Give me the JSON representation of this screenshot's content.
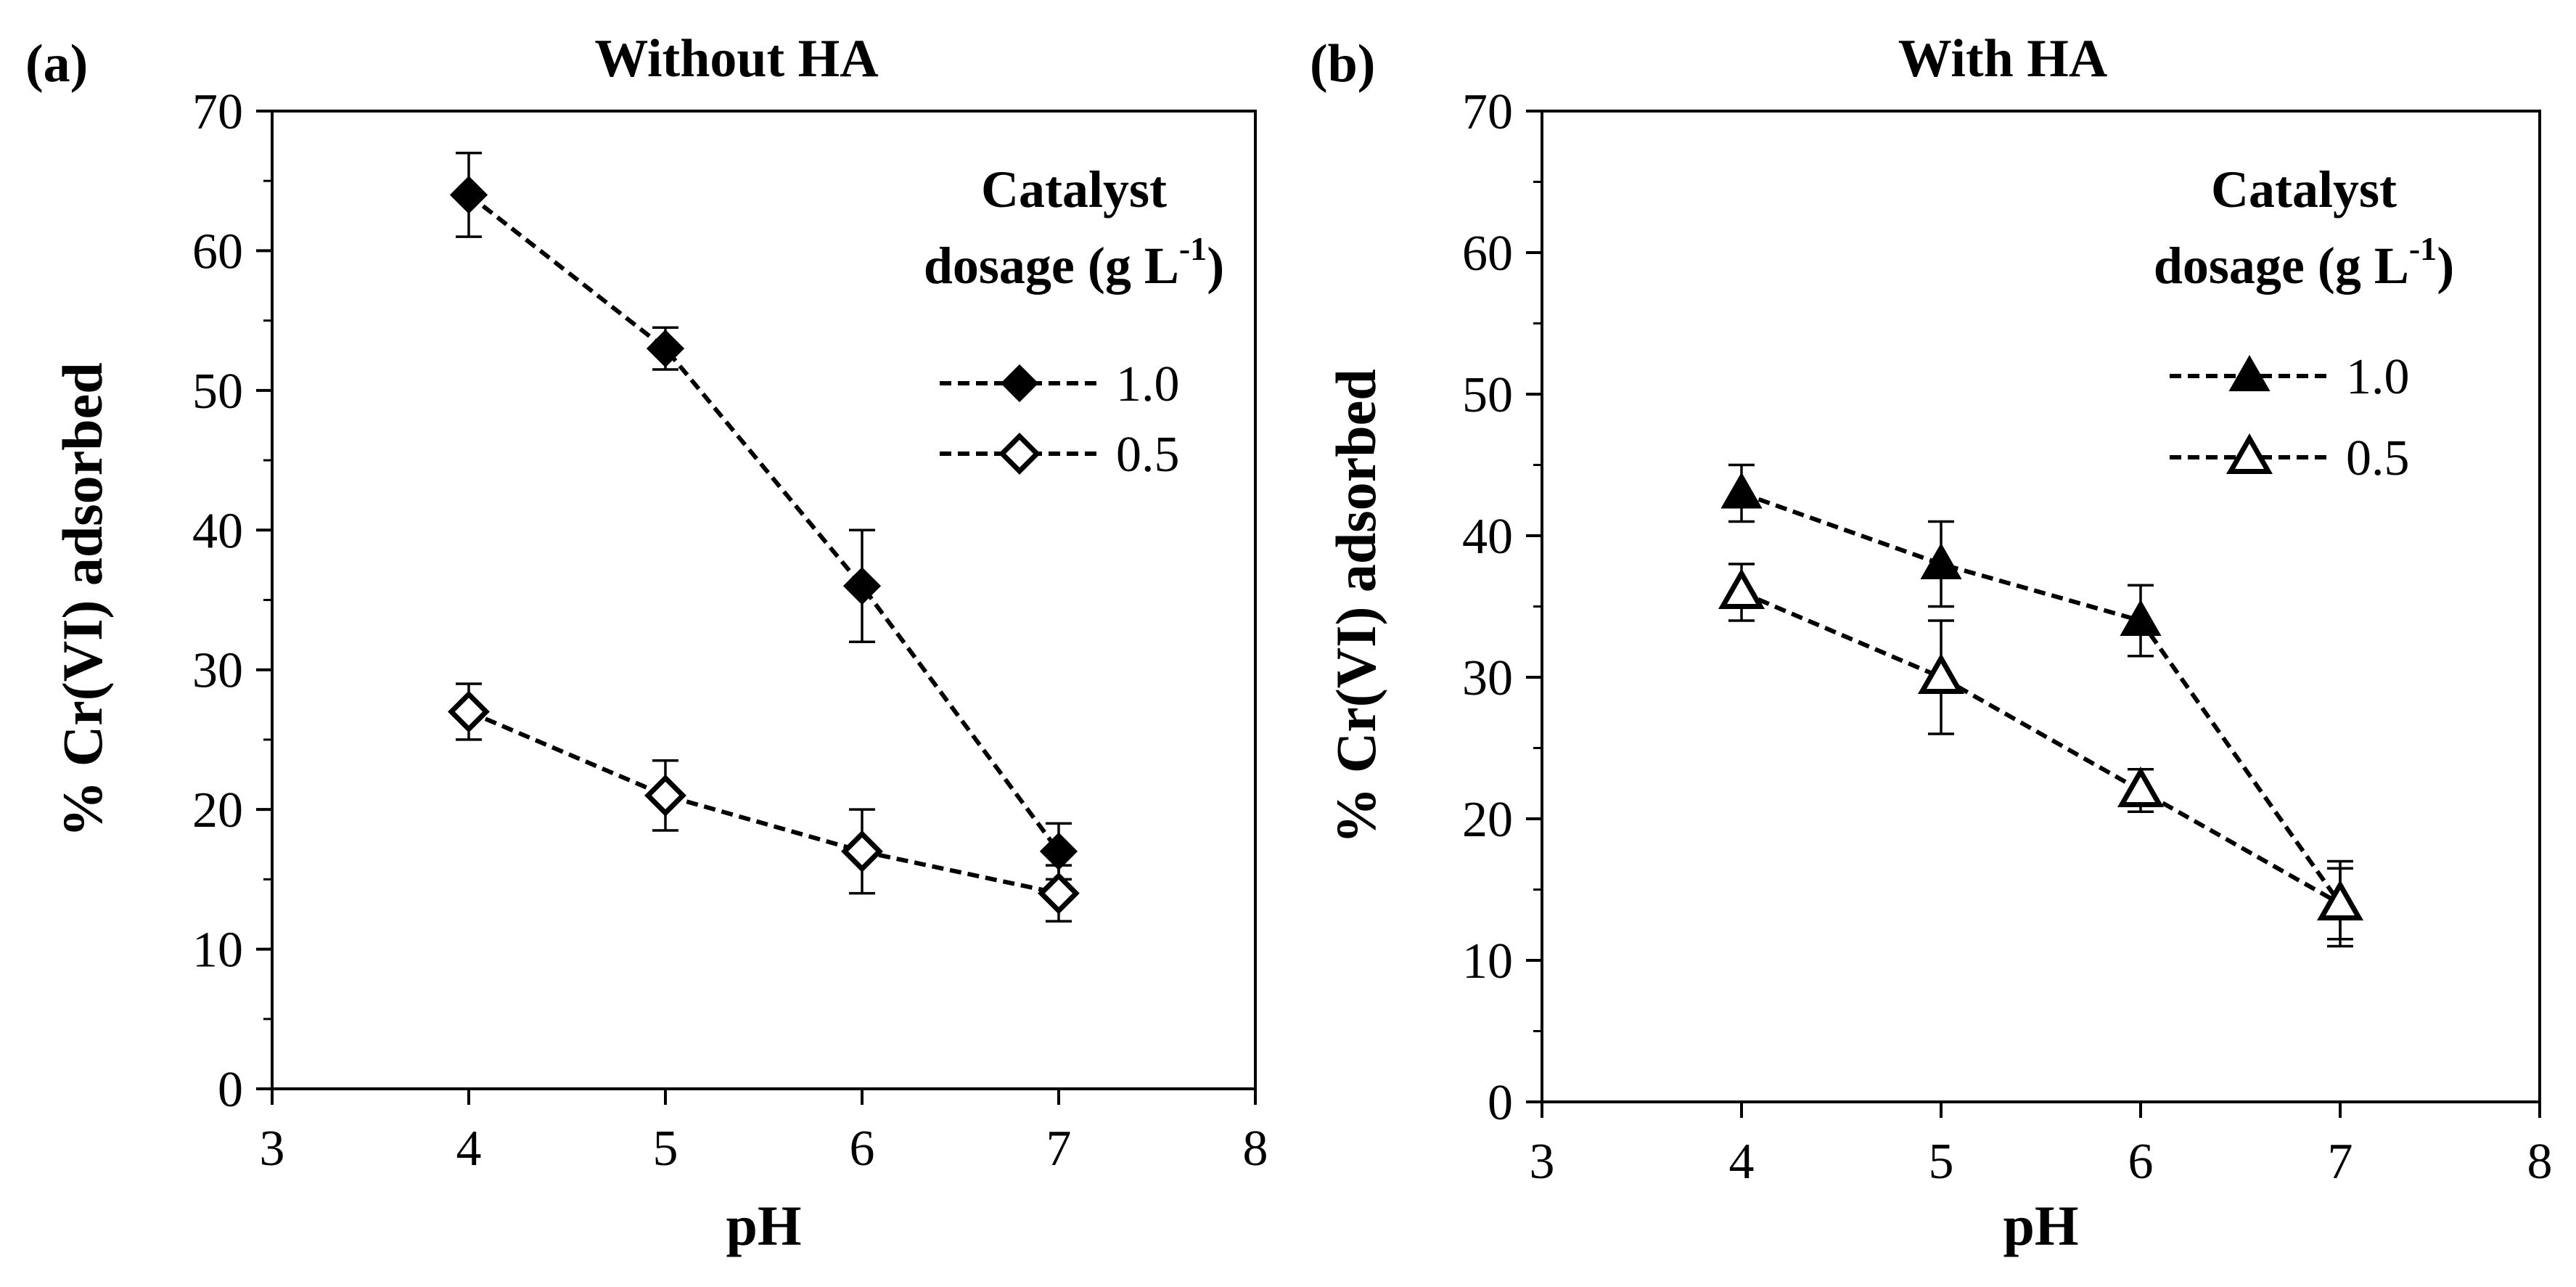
{
  "chart_data": [
    {
      "type": "line",
      "panel_tag": "(a)",
      "title": "Without HA",
      "xlabel": "pH",
      "ylabel": "% Cr(VI) adsorbed",
      "xlim": [
        3,
        8
      ],
      "ylim": [
        0,
        70
      ],
      "xticks": [
        3,
        4,
        5,
        6,
        7,
        8
      ],
      "yticks": [
        0,
        10,
        20,
        30,
        40,
        50,
        60,
        70
      ],
      "grid": false,
      "legend": {
        "title_line1": "Catalyst",
        "title_line2": "dosage (g L",
        "title_sup": "-1",
        "title_close": ")",
        "position": "top-right"
      },
      "series": [
        {
          "name": "1.0",
          "marker": "diamond-filled",
          "line": "dashed",
          "x": [
            4,
            5,
            6,
            7
          ],
          "y": [
            64,
            53,
            36,
            17
          ],
          "err": [
            3,
            1.5,
            4,
            2
          ]
        },
        {
          "name": "0.5",
          "marker": "diamond-open",
          "line": "dashed",
          "x": [
            4,
            5,
            6,
            7
          ],
          "y": [
            27,
            21,
            17,
            14
          ],
          "err": [
            2,
            2.5,
            3,
            2
          ]
        }
      ]
    },
    {
      "type": "line",
      "panel_tag": "(b)",
      "title": "With HA",
      "xlabel": "pH",
      "ylabel": "% Cr(VI) adsorbed",
      "xlim": [
        3,
        8
      ],
      "ylim": [
        0,
        70
      ],
      "xticks": [
        3,
        4,
        5,
        6,
        7,
        8
      ],
      "yticks": [
        0,
        10,
        20,
        30,
        40,
        50,
        60,
        70
      ],
      "grid": false,
      "legend": {
        "title_line1": "Catalyst",
        "title_line2": "dosage (g L",
        "title_sup": "-1",
        "title_close": ")",
        "position": "top-right"
      },
      "series": [
        {
          "name": "1.0",
          "marker": "triangle-filled",
          "line": "dashed",
          "x": [
            4,
            5,
            6,
            7
          ],
          "y": [
            43,
            38,
            34,
            14
          ],
          "err": [
            2,
            3,
            2.5,
            2.5
          ]
        },
        {
          "name": "0.5",
          "marker": "triangle-open",
          "line": "dashed",
          "x": [
            4,
            5,
            6,
            7
          ],
          "y": [
            36,
            30,
            22,
            14
          ],
          "err": [
            2,
            4,
            1.5,
            3
          ]
        }
      ]
    }
  ]
}
